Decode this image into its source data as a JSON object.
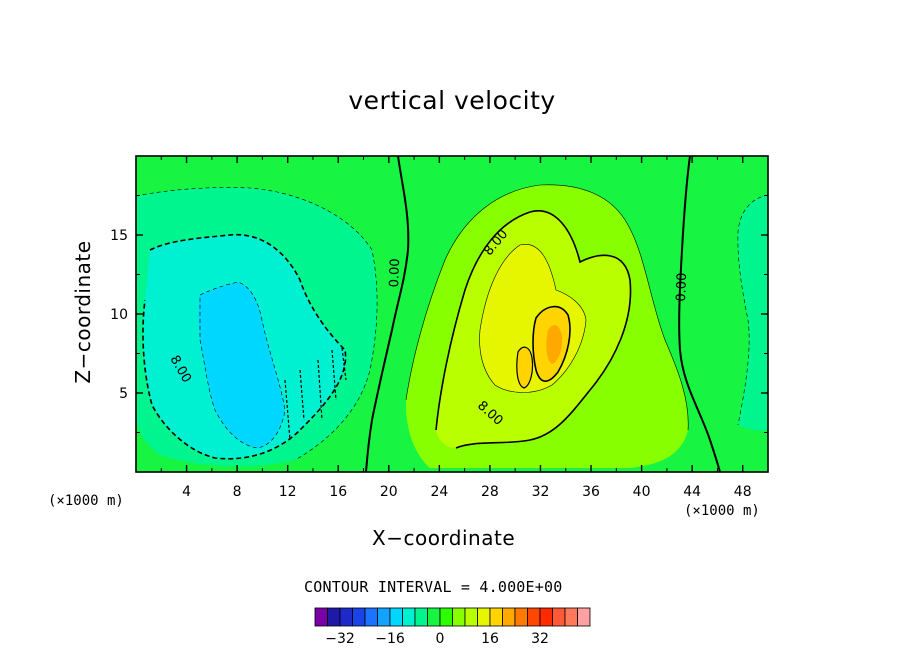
{
  "chart_data": {
    "type": "heatmap",
    "title": "vertical velocity",
    "xlabel": "X−coordinate",
    "ylabel": "Z−coordinate",
    "x_unit_label": "(×1000 m)",
    "xlim": [
      0,
      50
    ],
    "ylim": [
      0,
      20
    ],
    "x_ticks": [
      "4",
      "8",
      "12",
      "16",
      "20",
      "24",
      "28",
      "32",
      "36",
      "40",
      "44",
      "48"
    ],
    "y_ticks": [
      "5",
      "10",
      "15"
    ],
    "x_tick_values": [
      4,
      8,
      12,
      16,
      20,
      24,
      28,
      32,
      36,
      40,
      44,
      48
    ],
    "y_tick_values": [
      5,
      10,
      15
    ],
    "contour_interval_label": "CONTOUR INTERVAL = 4.000E+00",
    "contour_interval": 4,
    "contour_labels": [
      {
        "text": "0.00",
        "x": 20.5,
        "y": 12.6,
        "rotation": -88
      },
      {
        "text": "8.00",
        "x": 28.5,
        "y": 14.5,
        "rotation": -50
      },
      {
        "text": "8.00",
        "x": 28.0,
        "y": 3.7,
        "rotation": 42
      },
      {
        "text": "0.00",
        "x": 43.2,
        "y": 11.7,
        "rotation": -88
      },
      {
        "text": "8.00",
        "x": 3.5,
        "y": 6.5,
        "rotation": 60
      }
    ],
    "colorbar": {
      "colors": [
        "#7a00a6",
        "#1f1aa6",
        "#1e2ac8",
        "#1a43e8",
        "#1b74ff",
        "#12a3ff",
        "#00d7ff",
        "#00f0d2",
        "#00f58e",
        "#17f542",
        "#2cff00",
        "#88ff00",
        "#b9ff00",
        "#e5f600",
        "#ffd400",
        "#ffa800",
        "#ff7a00",
        "#ff4700",
        "#ff2a00",
        "#ff5a38",
        "#ff7a5a",
        "#ffa1a1"
      ],
      "tick_labels": [
        "−32",
        "−16",
        "0",
        "16",
        "32"
      ],
      "tick_values": [
        -32,
        -16,
        0,
        16,
        32
      ]
    },
    "field_colors": {
      "neg4": "#00f58e",
      "neg8": "#00f0d2",
      "neg12": "#00d7ff",
      "zero": "#2cff00",
      "pos4": "#88ff00",
      "pos8": "#b9ff00",
      "pos12": "#e5f600",
      "pos16": "#ffd400",
      "pos20": "#ffa800",
      "pos24": "#ff7a00",
      "base": "#17f542"
    }
  }
}
